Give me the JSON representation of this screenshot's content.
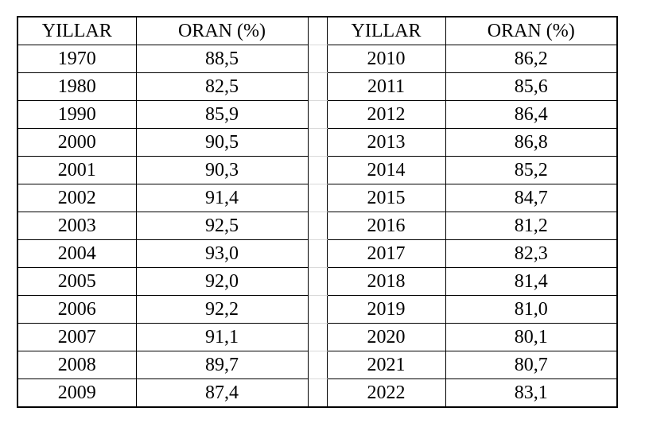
{
  "headers": {
    "year": "YILLAR",
    "rate": "ORAN (%)"
  },
  "left_rows": [
    {
      "year": "1970",
      "rate": "88,5"
    },
    {
      "year": "1980",
      "rate": "82,5"
    },
    {
      "year": "1990",
      "rate": "85,9"
    },
    {
      "year": "2000",
      "rate": "90,5"
    },
    {
      "year": "2001",
      "rate": "90,3"
    },
    {
      "year": "2002",
      "rate": "91,4"
    },
    {
      "year": "2003",
      "rate": "92,5"
    },
    {
      "year": "2004",
      "rate": "93,0"
    },
    {
      "year": "2005",
      "rate": "92,0"
    },
    {
      "year": "2006",
      "rate": "92,2"
    },
    {
      "year": "2007",
      "rate": "91,1"
    },
    {
      "year": "2008",
      "rate": "89,7"
    },
    {
      "year": "2009",
      "rate": "87,4"
    }
  ],
  "right_rows": [
    {
      "year": "2010",
      "rate": "86,2"
    },
    {
      "year": "2011",
      "rate": "85,6"
    },
    {
      "year": "2012",
      "rate": "86,4"
    },
    {
      "year": "2013",
      "rate": "86,8"
    },
    {
      "year": "2014",
      "rate": "85,2"
    },
    {
      "year": "2015",
      "rate": "84,7"
    },
    {
      "year": "2016",
      "rate": "81,2"
    },
    {
      "year": "2017",
      "rate": "82,3"
    },
    {
      "year": "2018",
      "rate": "81,4"
    },
    {
      "year": "2019",
      "rate": "81,0"
    },
    {
      "year": "2020",
      "rate": "80,1"
    },
    {
      "year": "2021",
      "rate": "80,7"
    },
    {
      "year": "2022",
      "rate": "83,1"
    }
  ]
}
